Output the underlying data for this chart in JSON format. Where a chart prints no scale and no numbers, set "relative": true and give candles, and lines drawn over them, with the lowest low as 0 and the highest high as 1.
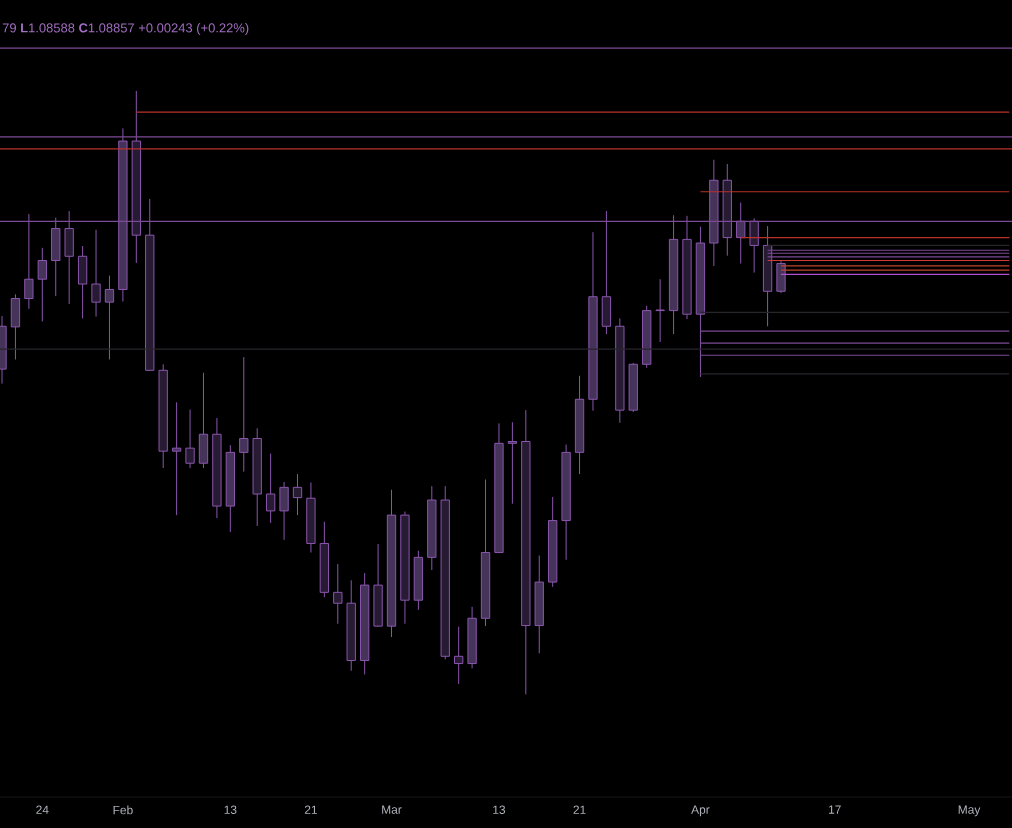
{
  "chart_data": {
    "type": "candlestick",
    "relative": true,
    "tick_labels": "x",
    "annotations": [
      "79 **L**1.08588 **C**1.08857 +0.00243 (+0.22%)"
    ],
    "categories": [
      null,
      null,
      null,
      "24",
      null,
      null,
      null,
      null,
      null,
      "Feb",
      null,
      null,
      null,
      null,
      null,
      null,
      null,
      "13",
      null,
      null,
      null,
      null,
      null,
      "21",
      null,
      null,
      null,
      null,
      null,
      "Mar",
      null,
      null,
      null,
      null,
      null,
      null,
      null,
      "13",
      null,
      null,
      null,
      null,
      null,
      "21",
      null,
      null,
      null,
      null,
      null,
      null,
      null,
      null,
      "Apr",
      null,
      null,
      null,
      null,
      null,
      null,
      null,
      null,
      null,
      "17",
      null,
      null,
      null,
      null,
      null,
      null,
      null,
      null,
      null,
      "May",
      null,
      null,
      null
    ],
    "color": "#8a56ad",
    "ohlc": [
      [
        0.539,
        0.627,
        0.515,
        0.61
      ],
      [
        0.609,
        0.663,
        0.555,
        0.656
      ],
      [
        0.656,
        0.796,
        0.639,
        0.688
      ],
      [
        0.688,
        0.74,
        0.618,
        0.719
      ],
      [
        0.719,
        0.79,
        0.66,
        0.772
      ],
      [
        0.772,
        0.801,
        0.647,
        0.726
      ],
      [
        0.726,
        0.743,
        0.623,
        0.68
      ],
      [
        0.68,
        0.77,
        0.626,
        0.65
      ],
      [
        0.65,
        0.694,
        0.555,
        0.671
      ],
      [
        0.671,
        0.938,
        0.651,
        0.917
      ],
      [
        0.917,
        1.0,
        0.715,
        0.761
      ],
      [
        0.761,
        0.821,
        0.536,
        0.537
      ],
      [
        0.537,
        0.547,
        0.375,
        0.403
      ],
      [
        0.403,
        0.484,
        0.297,
        0.408
      ],
      [
        0.408,
        0.472,
        0.375,
        0.383
      ],
      [
        0.383,
        0.533,
        0.375,
        0.431
      ],
      [
        0.431,
        0.458,
        0.292,
        0.312
      ],
      [
        0.312,
        0.413,
        0.269,
        0.401
      ],
      [
        0.401,
        0.559,
        0.369,
        0.424
      ],
      [
        0.424,
        0.441,
        0.279,
        0.332
      ],
      [
        0.332,
        0.399,
        0.284,
        0.304
      ],
      [
        0.304,
        0.352,
        0.256,
        0.343
      ],
      [
        0.343,
        0.365,
        0.297,
        0.326
      ],
      [
        0.325,
        0.351,
        0.235,
        0.25
      ],
      [
        0.25,
        0.286,
        0.161,
        0.169
      ],
      [
        0.169,
        0.216,
        0.117,
        0.151
      ],
      [
        0.151,
        0.189,
        0.039,
        0.056
      ],
      [
        0.056,
        0.201,
        0.033,
        0.181
      ],
      [
        0.181,
        0.249,
        0.112,
        0.113
      ],
      [
        0.113,
        0.339,
        0.095,
        0.297
      ],
      [
        0.297,
        0.303,
        0.117,
        0.156
      ],
      [
        0.156,
        0.238,
        0.14,
        0.227
      ],
      [
        0.227,
        0.345,
        0.206,
        0.322
      ],
      [
        0.322,
        0.345,
        0.058,
        0.063
      ],
      [
        0.063,
        0.112,
        0.017,
        0.051
      ],
      [
        0.051,
        0.145,
        0.043,
        0.126
      ],
      [
        0.126,
        0.356,
        0.113,
        0.235
      ],
      [
        0.235,
        0.449,
        0.234,
        0.416
      ],
      [
        0.416,
        0.451,
        0.316,
        0.419
      ],
      [
        0.419,
        0.471,
        0.0,
        0.114
      ],
      [
        0.114,
        0.23,
        0.068,
        0.186
      ],
      [
        0.186,
        0.327,
        0.178,
        0.288
      ],
      [
        0.288,
        0.414,
        0.223,
        0.401
      ],
      [
        0.401,
        0.528,
        0.365,
        0.489
      ],
      [
        0.489,
        0.766,
        0.47,
        0.659
      ],
      [
        0.659,
        0.801,
        0.597,
        0.61
      ],
      [
        0.61,
        0.623,
        0.45,
        0.471
      ],
      [
        0.471,
        0.549,
        0.468,
        0.547
      ],
      [
        0.547,
        0.644,
        0.541,
        0.636
      ],
      [
        0.636,
        0.688,
        0.584,
        0.637
      ],
      [
        0.636,
        0.794,
        0.597,
        0.754
      ],
      [
        0.754,
        0.793,
        0.622,
        0.63
      ],
      [
        0.63,
        0.775,
        0.526,
        0.748
      ],
      [
        0.748,
        0.886,
        0.71,
        0.852
      ],
      [
        0.852,
        0.879,
        0.727,
        0.757
      ],
      [
        0.757,
        0.815,
        0.714,
        0.784
      ],
      [
        0.784,
        0.789,
        0.699,
        0.744
      ],
      [
        0.744,
        0.776,
        0.61,
        0.668
      ],
      [
        0.668,
        0.718,
        0.665,
        0.714
      ],
      null,
      null,
      null,
      null,
      null,
      null,
      null,
      null,
      null,
      null,
      null,
      null,
      null,
      null,
      null,
      null,
      null
    ],
    "colors": [
      "#45335a",
      "#45335a",
      "#45335a",
      "#45335a",
      "#45335a",
      "#271a33",
      "#271a33",
      "#271a33",
      "#45335a",
      "#45335a",
      "#271a33",
      "#271a33",
      "#271a33",
      "#45335a",
      "#271a33",
      "#45335a",
      "#271a33",
      "#45335a",
      "#45335a",
      "#271a33",
      "#271a33",
      "#45335a",
      "#271a33",
      "#271a33",
      "#271a33",
      "#271a33",
      "#271a33",
      "#45335a",
      "#271a33",
      "#45335a",
      "#271a33",
      "#45335a",
      "#45335a",
      "#271a33",
      "#271a33",
      "#45335a",
      "#45335a",
      "#45335a",
      "#45335a",
      "#271a33",
      "#45335a",
      "#45335a",
      "#45335a",
      "#45335a",
      "#45335a",
      "#271a33",
      "#271a33",
      "#45335a",
      "#45335a",
      "#45335a",
      "#45335a",
      "#271a33",
      "#45335a",
      "#45335a",
      "#271a33",
      "#45335a",
      "#271a33",
      "#271a33",
      "#45335a",
      null,
      null,
      null,
      null,
      null,
      null,
      null,
      null,
      null,
      null,
      null,
      null,
      null,
      null,
      null,
      null,
      null
    ],
    "ref_lines": [
      {
        "axis": "y",
        "value": 1.071,
        "color": "#7b4a96"
      },
      {
        "axis": "y",
        "value": 0.924,
        "color": "#7b4a96"
      },
      {
        "axis": "y",
        "value": 0.904,
        "color": "#b8322a"
      },
      {
        "axis": "y",
        "value": 0.784,
        "color": "#7b4a96"
      },
      {
        "axis": "y",
        "value": 0.572,
        "color": "#26262b"
      }
    ],
    "series": [
      {
        "type": "line",
        "color": "#b8322a",
        "values": [
          null,
          null,
          null,
          null,
          null,
          null,
          null,
          null,
          null,
          null,
          0.965,
          0.965,
          0.965,
          0.965,
          0.965,
          0.965,
          0.965,
          0.965,
          0.965,
          0.965,
          0.965,
          0.965,
          0.965,
          0.965,
          0.965,
          0.965,
          0.965,
          0.965,
          0.965,
          0.965,
          0.965,
          0.965,
          0.965,
          0.965,
          0.965,
          0.965,
          0.965,
          0.965,
          0.965,
          0.965,
          0.965,
          0.965,
          0.965,
          0.965,
          0.965,
          0.965,
          0.965,
          0.965,
          0.965,
          0.965,
          0.965,
          0.965,
          0.965,
          0.965,
          0.965,
          0.965,
          0.965,
          0.965,
          0.965,
          0.965,
          0.965,
          0.965,
          0.965,
          0.965,
          0.965,
          0.965,
          0.965,
          0.965,
          0.965,
          0.965,
          0.965,
          0.965,
          0.965,
          0.965,
          0.965,
          0.965
        ]
      },
      {
        "type": "line",
        "color": "#b8322a",
        "values": [
          null,
          null,
          null,
          null,
          null,
          null,
          null,
          null,
          null,
          null,
          null,
          null,
          null,
          null,
          null,
          null,
          null,
          null,
          null,
          null,
          null,
          null,
          null,
          null,
          null,
          null,
          null,
          null,
          null,
          null,
          null,
          null,
          null,
          null,
          null,
          null,
          null,
          null,
          null,
          null,
          null,
          null,
          null,
          null,
          null,
          null,
          null,
          null,
          null,
          null,
          null,
          null,
          0.833,
          0.833,
          0.833,
          0.833,
          0.833,
          0.833,
          0.833,
          0.833,
          0.833,
          0.833,
          0.833,
          0.833,
          0.833,
          0.833,
          0.833,
          0.833,
          0.833,
          0.833,
          0.833,
          0.833,
          0.833,
          0.833,
          0.833,
          0.833
        ]
      },
      {
        "type": "line",
        "color": "#b8322a",
        "values": [
          null,
          null,
          null,
          null,
          null,
          null,
          null,
          null,
          null,
          null,
          null,
          null,
          null,
          null,
          null,
          null,
          null,
          null,
          null,
          null,
          null,
          null,
          null,
          null,
          null,
          null,
          null,
          null,
          null,
          null,
          null,
          null,
          null,
          null,
          null,
          null,
          null,
          null,
          null,
          null,
          null,
          null,
          null,
          null,
          null,
          null,
          null,
          null,
          null,
          null,
          null,
          null,
          null,
          null,
          null,
          0.757,
          0.757,
          0.757,
          0.757,
          0.757,
          0.757,
          0.757,
          0.757,
          0.757,
          0.757,
          0.757,
          0.757,
          0.757,
          0.757,
          0.757,
          0.757,
          0.757,
          0.757,
          0.757,
          0.757,
          0.757
        ]
      },
      {
        "type": "line",
        "color": "#26262b",
        "values": [
          null,
          null,
          null,
          null,
          null,
          null,
          null,
          null,
          null,
          null,
          null,
          null,
          null,
          null,
          null,
          null,
          null,
          null,
          null,
          null,
          null,
          null,
          null,
          null,
          null,
          null,
          null,
          null,
          null,
          null,
          null,
          null,
          null,
          null,
          null,
          null,
          null,
          null,
          null,
          null,
          null,
          null,
          null,
          null,
          null,
          null,
          null,
          null,
          null,
          null,
          null,
          null,
          null,
          null,
          null,
          null,
          null,
          0.744,
          0.744,
          0.744,
          0.744,
          0.744,
          0.744,
          0.744,
          0.744,
          0.744,
          0.744,
          0.744,
          0.744,
          0.744,
          0.744,
          0.744,
          0.744,
          0.744,
          0.744,
          0.744
        ]
      },
      {
        "type": "line",
        "color": "#7b4a96",
        "values": [
          null,
          null,
          null,
          null,
          null,
          null,
          null,
          null,
          null,
          null,
          null,
          null,
          null,
          null,
          null,
          null,
          null,
          null,
          null,
          null,
          null,
          null,
          null,
          null,
          null,
          null,
          null,
          null,
          null,
          null,
          null,
          null,
          null,
          null,
          null,
          null,
          null,
          null,
          null,
          null,
          null,
          null,
          null,
          null,
          null,
          null,
          null,
          null,
          null,
          null,
          null,
          null,
          null,
          null,
          null,
          null,
          null,
          0.736,
          0.736,
          0.736,
          0.736,
          0.736,
          0.736,
          0.736,
          0.736,
          0.736,
          0.736,
          0.736,
          0.736,
          0.736,
          0.736,
          0.736,
          0.736,
          0.736,
          0.736,
          0.736
        ]
      },
      {
        "type": "line",
        "color": "#7b4a96",
        "values": [
          null,
          null,
          null,
          null,
          null,
          null,
          null,
          null,
          null,
          null,
          null,
          null,
          null,
          null,
          null,
          null,
          null,
          null,
          null,
          null,
          null,
          null,
          null,
          null,
          null,
          null,
          null,
          null,
          null,
          null,
          null,
          null,
          null,
          null,
          null,
          null,
          null,
          null,
          null,
          null,
          null,
          null,
          null,
          null,
          null,
          null,
          null,
          null,
          null,
          null,
          null,
          null,
          null,
          null,
          null,
          null,
          null,
          0.731,
          0.731,
          0.731,
          0.731,
          0.731,
          0.731,
          0.731,
          0.731,
          0.731,
          0.731,
          0.731,
          0.731,
          0.731,
          0.731,
          0.731,
          0.731,
          0.731,
          0.731,
          0.731
        ]
      },
      {
        "type": "line",
        "color": "#7b4a96",
        "values": [
          null,
          null,
          null,
          null,
          null,
          null,
          null,
          null,
          null,
          null,
          null,
          null,
          null,
          null,
          null,
          null,
          null,
          null,
          null,
          null,
          null,
          null,
          null,
          null,
          null,
          null,
          null,
          null,
          null,
          null,
          null,
          null,
          null,
          null,
          null,
          null,
          null,
          null,
          null,
          null,
          null,
          null,
          null,
          null,
          null,
          null,
          null,
          null,
          null,
          null,
          null,
          null,
          null,
          null,
          null,
          null,
          null,
          0.725,
          0.725,
          0.725,
          0.725,
          0.725,
          0.725,
          0.725,
          0.725,
          0.725,
          0.725,
          0.725,
          0.725,
          0.725,
          0.725,
          0.725,
          0.725,
          0.725,
          0.725,
          0.725
        ]
      },
      {
        "type": "line",
        "color": "#d23a36",
        "values": [
          null,
          null,
          null,
          null,
          null,
          null,
          null,
          null,
          null,
          null,
          null,
          null,
          null,
          null,
          null,
          null,
          null,
          null,
          null,
          null,
          null,
          null,
          null,
          null,
          null,
          null,
          null,
          null,
          null,
          null,
          null,
          null,
          null,
          null,
          null,
          null,
          null,
          null,
          null,
          null,
          null,
          null,
          null,
          null,
          null,
          null,
          null,
          null,
          null,
          null,
          null,
          null,
          null,
          null,
          null,
          null,
          null,
          0.719,
          0.719,
          0.719,
          0.719,
          0.719,
          0.719,
          0.719,
          0.719,
          0.719,
          0.719,
          0.719,
          0.719,
          0.719,
          0.719,
          0.719,
          0.719,
          0.719,
          0.719,
          0.719
        ]
      },
      {
        "type": "line",
        "color": "#c0452e",
        "values": [
          null,
          null,
          null,
          null,
          null,
          null,
          null,
          null,
          null,
          null,
          null,
          null,
          null,
          null,
          null,
          null,
          null,
          null,
          null,
          null,
          null,
          null,
          null,
          null,
          null,
          null,
          null,
          null,
          null,
          null,
          null,
          null,
          null,
          null,
          null,
          null,
          null,
          null,
          null,
          null,
          null,
          null,
          null,
          null,
          null,
          null,
          null,
          null,
          null,
          null,
          null,
          null,
          null,
          null,
          null,
          null,
          null,
          null,
          0.71,
          0.71,
          0.71,
          0.71,
          0.71,
          0.71,
          0.71,
          0.71,
          0.71,
          0.71,
          0.71,
          0.71,
          0.71,
          0.71,
          0.71,
          0.71,
          0.71,
          0.71
        ]
      },
      {
        "type": "line",
        "color": "#c0452e",
        "values": [
          null,
          null,
          null,
          null,
          null,
          null,
          null,
          null,
          null,
          null,
          null,
          null,
          null,
          null,
          null,
          null,
          null,
          null,
          null,
          null,
          null,
          null,
          null,
          null,
          null,
          null,
          null,
          null,
          null,
          null,
          null,
          null,
          null,
          null,
          null,
          null,
          null,
          null,
          null,
          null,
          null,
          null,
          null,
          null,
          null,
          null,
          null,
          null,
          null,
          null,
          null,
          null,
          null,
          null,
          null,
          null,
          null,
          null,
          0.703,
          0.703,
          0.703,
          0.703,
          0.703,
          0.703,
          0.703,
          0.703,
          0.703,
          0.703,
          0.703,
          0.703,
          0.703,
          0.703,
          0.703,
          0.703,
          0.703,
          0.703
        ]
      },
      {
        "type": "line",
        "color": "#b44fd0",
        "values": [
          null,
          null,
          null,
          null,
          null,
          null,
          null,
          null,
          null,
          null,
          null,
          null,
          null,
          null,
          null,
          null,
          null,
          null,
          null,
          null,
          null,
          null,
          null,
          null,
          null,
          null,
          null,
          null,
          null,
          null,
          null,
          null,
          null,
          null,
          null,
          null,
          null,
          null,
          null,
          null,
          null,
          null,
          null,
          null,
          null,
          null,
          null,
          null,
          null,
          null,
          null,
          null,
          null,
          null,
          null,
          null,
          null,
          null,
          0.696,
          0.696,
          0.696,
          0.696,
          0.696,
          0.696,
          0.696,
          0.696,
          0.696,
          0.696,
          0.696,
          0.696,
          0.696,
          0.696,
          0.696,
          0.696,
          0.696,
          0.696
        ]
      },
      {
        "type": "line",
        "color": "#26262b",
        "values": [
          null,
          null,
          null,
          null,
          null,
          null,
          null,
          null,
          null,
          null,
          null,
          null,
          null,
          null,
          null,
          null,
          null,
          null,
          null,
          null,
          null,
          null,
          null,
          null,
          null,
          null,
          null,
          null,
          null,
          null,
          null,
          null,
          null,
          null,
          null,
          null,
          null,
          null,
          null,
          null,
          null,
          null,
          null,
          null,
          null,
          null,
          null,
          null,
          null,
          null,
          null,
          null,
          0.633,
          0.633,
          0.633,
          0.633,
          0.633,
          0.633,
          0.633,
          0.633,
          0.633,
          0.633,
          0.633,
          0.633,
          0.633,
          0.633,
          0.633,
          0.633,
          0.633,
          0.633,
          0.633,
          0.633,
          0.633,
          0.633,
          0.633,
          0.633
        ]
      },
      {
        "type": "line",
        "color": "#7b4a96",
        "values": [
          null,
          null,
          null,
          null,
          null,
          null,
          null,
          null,
          null,
          null,
          null,
          null,
          null,
          null,
          null,
          null,
          null,
          null,
          null,
          null,
          null,
          null,
          null,
          null,
          null,
          null,
          null,
          null,
          null,
          null,
          null,
          null,
          null,
          null,
          null,
          null,
          null,
          null,
          null,
          null,
          null,
          null,
          null,
          null,
          null,
          null,
          null,
          null,
          null,
          null,
          null,
          null,
          0.602,
          0.602,
          0.602,
          0.602,
          0.602,
          0.602,
          0.602,
          0.602,
          0.602,
          0.602,
          0.602,
          0.602,
          0.602,
          0.602,
          0.602,
          0.602,
          0.602,
          0.602,
          0.602,
          0.602,
          0.602,
          0.602,
          0.602,
          0.602
        ]
      },
      {
        "type": "line",
        "color": "#7b4a96",
        "values": [
          null,
          null,
          null,
          null,
          null,
          null,
          null,
          null,
          null,
          null,
          null,
          null,
          null,
          null,
          null,
          null,
          null,
          null,
          null,
          null,
          null,
          null,
          null,
          null,
          null,
          null,
          null,
          null,
          null,
          null,
          null,
          null,
          null,
          null,
          null,
          null,
          null,
          null,
          null,
          null,
          null,
          null,
          null,
          null,
          null,
          null,
          null,
          null,
          null,
          null,
          null,
          null,
          0.582,
          0.582,
          0.582,
          0.582,
          0.582,
          0.582,
          0.582,
          0.582,
          0.582,
          0.582,
          0.582,
          0.582,
          0.582,
          0.582,
          0.582,
          0.582,
          0.582,
          0.582,
          0.582,
          0.582,
          0.582,
          0.582,
          0.582,
          0.582
        ]
      },
      {
        "type": "line",
        "color": "#7b4a96",
        "values": [
          null,
          null,
          null,
          null,
          null,
          null,
          null,
          null,
          null,
          null,
          null,
          null,
          null,
          null,
          null,
          null,
          null,
          null,
          null,
          null,
          null,
          null,
          null,
          null,
          null,
          null,
          null,
          null,
          null,
          null,
          null,
          null,
          null,
          null,
          null,
          null,
          null,
          null,
          null,
          null,
          null,
          null,
          null,
          null,
          null,
          null,
          null,
          null,
          null,
          null,
          null,
          null,
          0.562,
          0.562,
          0.562,
          0.562,
          0.562,
          0.562,
          0.562,
          0.562,
          0.562,
          0.562,
          0.562,
          0.562,
          0.562,
          0.562,
          0.562,
          0.562,
          0.562,
          0.562,
          0.562,
          0.562,
          0.562,
          0.562,
          0.562,
          0.562
        ]
      },
      {
        "type": "line",
        "color": "#26262b",
        "values": [
          null,
          null,
          null,
          null,
          null,
          null,
          null,
          null,
          null,
          null,
          null,
          null,
          null,
          null,
          null,
          null,
          null,
          null,
          null,
          null,
          null,
          null,
          null,
          null,
          null,
          null,
          null,
          null,
          null,
          null,
          null,
          null,
          null,
          null,
          null,
          null,
          null,
          null,
          null,
          null,
          null,
          null,
          null,
          null,
          null,
          null,
          null,
          null,
          null,
          null,
          null,
          null,
          0.531,
          0.531,
          0.531,
          0.531,
          0.531,
          0.531,
          0.531,
          0.531,
          0.531,
          0.531,
          0.531,
          0.531,
          0.531,
          0.531,
          0.531,
          0.531,
          0.531,
          0.531,
          0.531,
          0.531,
          0.531,
          0.531,
          0.531,
          0.531
        ]
      }
    ]
  }
}
